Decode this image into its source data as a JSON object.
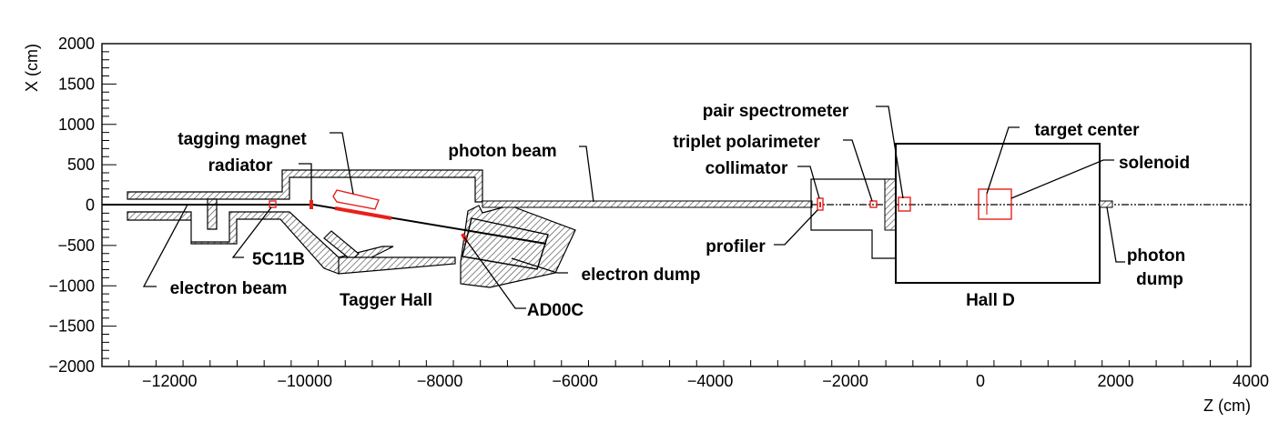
{
  "axes": {
    "xlabel": "Z (cm)",
    "ylabel": "X (cm)",
    "xlim": [
      -13000,
      4000
    ],
    "ylim": [
      -2000,
      2000
    ],
    "xticks": [
      "−12000",
      "−10000",
      "−8000",
      "−6000",
      "−4000",
      "−2000",
      "0",
      "2000",
      "4000"
    ],
    "xtick_values": [
      -12000,
      -10000,
      -8000,
      -6000,
      -4000,
      -2000,
      0,
      2000,
      4000
    ],
    "yticks": [
      "2000",
      "1500",
      "1000",
      "500",
      "0",
      "−500",
      "−1000",
      "−1500",
      "−2000"
    ],
    "ytick_values": [
      2000,
      1500,
      1000,
      500,
      0,
      -500,
      -1000,
      -1500,
      -2000
    ]
  },
  "labels": {
    "tagging_magnet": "tagging magnet",
    "radiator": "radiator",
    "photon_beam": "photon beam",
    "pair_spectrometer": "pair spectrometer",
    "triplet_polarimeter": "triplet polarimeter",
    "collimator": "collimator",
    "target_center": "target center",
    "solenoid": "solenoid",
    "profiler": "profiler",
    "photon_dump_1": "photon",
    "photon_dump_2": "dump",
    "c5c11b": "5C11B",
    "electron_beam": "electron beam",
    "tagger_hall": "Tagger Hall",
    "electron_dump": "electron dump",
    "ad00c": "AD00C",
    "hall_d": "Hall D"
  },
  "colors": {
    "outline": "#000000",
    "component": "#e8201a",
    "hatch": "#444444"
  }
}
